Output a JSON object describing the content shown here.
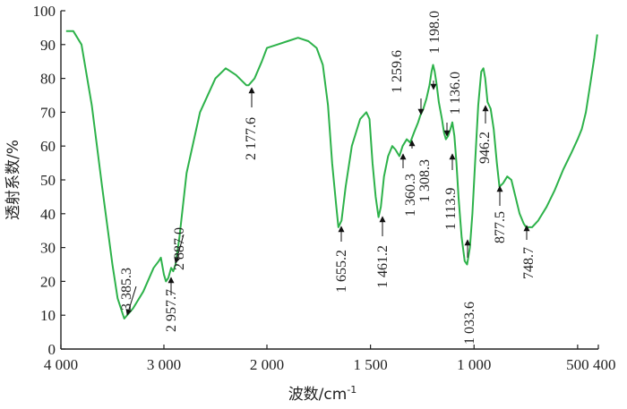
{
  "chart_data": {
    "type": "line",
    "title": "",
    "xlabel": "波数/cm",
    "xlabel_sup": "-1",
    "ylabel": "透射系数/%",
    "xlim": [
      4000,
      400
    ],
    "ylim": [
      0,
      100
    ],
    "x_ticks": [
      4000,
      3000,
      2000,
      1500,
      1000,
      500,
      400
    ],
    "x_tick_labels": [
      "4 000",
      "3 000",
      "2 000",
      "1 500",
      "1 000",
      "500",
      "400"
    ],
    "y_ticks": [
      0,
      10,
      20,
      30,
      40,
      50,
      60,
      70,
      80,
      90,
      100
    ],
    "y_tick_labels": [
      "0",
      "10",
      "20",
      "30",
      "40",
      "50",
      "60",
      "70",
      "80",
      "90",
      "100"
    ],
    "grid": false,
    "line_color": "#2db24a",
    "series": [
      {
        "x": [
          3950,
          3880,
          3800,
          3700,
          3600,
          3500,
          3450,
          3385,
          3300,
          3200,
          3100,
          3050,
          3030,
          3000,
          2980,
          2957.7,
          2930,
          2910,
          2887,
          2850,
          2780,
          2650,
          2500,
          2400,
          2300,
          2200,
          2177.6,
          2120,
          2050,
          2000,
          1950,
          1900,
          1850,
          1800,
          1760,
          1730,
          1705,
          1685,
          1665,
          1655,
          1640,
          1620,
          1590,
          1550,
          1520,
          1505,
          1490,
          1475,
          1461,
          1450,
          1435,
          1415,
          1395,
          1380,
          1360.3,
          1345,
          1325,
          1308.3,
          1290,
          1270,
          1259.6,
          1245,
          1230,
          1215,
          1205,
          1198,
          1190,
          1180,
          1170,
          1155,
          1145,
          1136,
          1125,
          1113.9,
          1105,
          1095,
          1085,
          1075,
          1060,
          1045,
          1033.6,
          1020,
          1008,
          995,
          980,
          965,
          955,
          946.2,
          935,
          920,
          905,
          890,
          877.5,
          860,
          840,
          820,
          800,
          780,
          760,
          748.7,
          720,
          690,
          650,
          610,
          570,
          530,
          500,
          480,
          460,
          440,
          420,
          405
        ],
        "y": [
          94,
          94,
          90,
          72,
          48,
          25,
          15,
          9,
          12,
          17,
          24,
          26,
          27,
          22,
          20,
          21,
          24,
          23,
          25,
          33,
          52,
          70,
          80,
          83,
          81,
          78,
          78,
          80,
          85,
          89,
          90,
          91,
          92,
          91,
          89,
          84,
          72,
          55,
          42,
          36,
          38,
          48,
          60,
          68,
          70,
          68,
          55,
          45,
          39,
          42,
          51,
          57,
          60,
          59,
          57,
          60,
          62,
          61,
          64,
          67,
          69,
          71,
          74,
          78,
          82,
          84,
          82,
          78,
          73,
          68,
          64,
          62,
          63,
          65,
          67,
          63,
          55,
          45,
          33,
          26,
          25,
          30,
          40,
          55,
          72,
          82,
          83,
          80,
          73,
          71,
          65,
          55,
          48,
          49,
          51,
          50,
          45,
          40,
          37,
          36,
          36,
          38,
          42,
          47,
          53,
          58,
          62,
          65,
          70,
          78,
          86,
          93
        ]
      }
    ],
    "annotations": [
      {
        "label": "3 385.3",
        "x": 3385.3,
        "y": 9
      },
      {
        "label": "2 957.7",
        "x": 2957.7,
        "y": 21
      },
      {
        "label": "2 887.0",
        "x": 2887.0,
        "y": 25
      },
      {
        "label": "2 177.6",
        "x": 2177.6,
        "y": 78
      },
      {
        "label": "1 655.2",
        "x": 1655.2,
        "y": 36
      },
      {
        "label": "1 461.2",
        "x": 1461.2,
        "y": 39
      },
      {
        "label": "1 360.3",
        "x": 1360.3,
        "y": 57
      },
      {
        "label": "1 308.3",
        "x": 1308.3,
        "y": 61
      },
      {
        "label": "1 259.6",
        "x": 1259.6,
        "y": 69
      },
      {
        "label": "1 198.0",
        "x": 1198.0,
        "y": 78
      },
      {
        "label": "1 136.0",
        "x": 1136.0,
        "y": 63
      },
      {
        "label": "1 113.9",
        "x": 1113.9,
        "y": 62
      },
      {
        "label": "1 033.6",
        "x": 1033.6,
        "y": 25
      },
      {
        "label": "946.2",
        "x": 946.2,
        "y": 71
      },
      {
        "label": "877.5",
        "x": 877.5,
        "y": 49
      },
      {
        "label": "748.7",
        "x": 748.7,
        "y": 36
      }
    ]
  }
}
